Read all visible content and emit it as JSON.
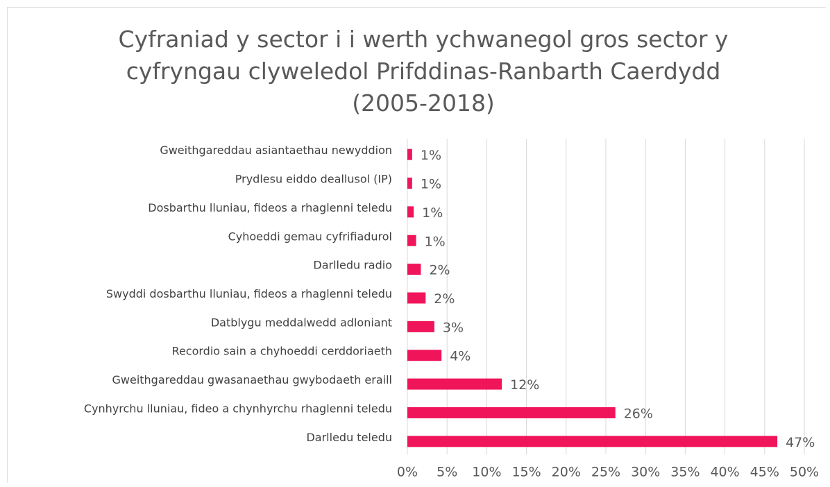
{
  "chart_data": {
    "type": "barh",
    "title": "Cyfraniad y sector i i werth ychwanegol gros sector y cyfryngau clyweledol Prifddinas-Ranbarth Caerdydd (2005-2018)",
    "categories": [
      "Gweithgareddau asiantaethau newyddion",
      "Prydlesu eiddo deallusol (IP)",
      "Dosbarthu lluniau, fideos a rhaglenni teledu",
      "Cyhoeddi gemau cyfrifiadurol",
      "Darlledu radio",
      "Swyddi dosbarthu lluniau, fideos a rhaglenni teledu",
      "Datblygu meddalwedd adloniant",
      "Recordio sain a chyhoeddi cerddoriaeth",
      "Gweithgareddau gwasanaethau gwybodaeth eraill",
      "Cynhyrchu lluniau, fideo a chynhyrchu rhaglenni teledu",
      "Darlledu teledu"
    ],
    "values": [
      0.6,
      0.6,
      0.8,
      1.1,
      1.7,
      2.3,
      3.4,
      4.3,
      11.9,
      26.2,
      46.6
    ],
    "value_labels": [
      "1%",
      "1%",
      "1%",
      "1%",
      "2%",
      "2%",
      "3%",
      "4%",
      "12%",
      "26%",
      "47%"
    ],
    "color": "#f0145a",
    "xlim": [
      0,
      50
    ],
    "xticks": [
      {
        "value": 0,
        "label": "0%"
      },
      {
        "value": 5,
        "label": "5%"
      },
      {
        "value": 10,
        "label": "10%"
      },
      {
        "value": 15,
        "label": "15%"
      },
      {
        "value": 20,
        "label": "20%"
      },
      {
        "value": 25,
        "label": "25%"
      },
      {
        "value": 30,
        "label": "30%"
      },
      {
        "value": 35,
        "label": "35%"
      },
      {
        "value": 40,
        "label": "40%"
      },
      {
        "value": 45,
        "label": "45%"
      },
      {
        "value": 50,
        "label": "50%"
      }
    ],
    "grid": true
  }
}
